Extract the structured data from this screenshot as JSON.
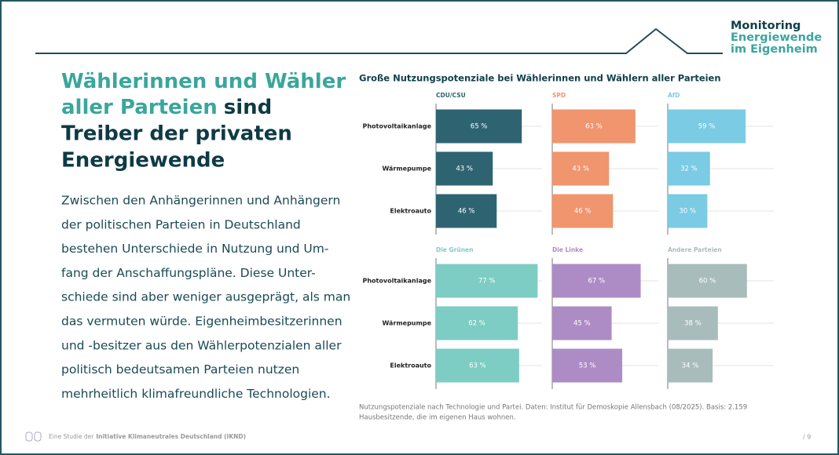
{
  "logo": [
    "Monitoring",
    "Energiewende",
    "im Eigenheim"
  ],
  "heading": [
    [
      "Wählerinnen und Wähler"
    ],
    [
      "aller Parteien",
      "sind"
    ],
    [
      "Treiber der privaten"
    ],
    [
      "Energiewende"
    ]
  ],
  "body": [
    "Zwischen den Anhängerinnen und Anhängern",
    "der politischen Parteien in Deutschland",
    "bestehen Unterschiede in Nutzung und Um-",
    "fang der Anschaffungspläne. Diese Unter-",
    "schiede sind aber weniger ausgeprägt, als man",
    "das vermuten würde. Eigenheimbesitzerinnen",
    "und -besitzer aus den Wählerpotenzialen aller",
    "politisch bedeutsamen Parteien nutzen",
    "mehrheitlich klimafreundliche Technologien."
  ],
  "chart_title": "Große Nutzungspotenziale bei Wählerinnen und Wählern aller Parteien",
  "chart_data": [
    {
      "type": "bar",
      "title": "CDU/CSU",
      "categories": [
        "Photovoltaikanlage",
        "Wärmepumpe",
        "Elektroauto"
      ],
      "values": [
        65,
        43,
        46
      ],
      "value_labels": [
        "65 %",
        "43 %",
        "46 %"
      ],
      "color": "#2e6472"
    },
    {
      "type": "bar",
      "title": "SPD",
      "values": [
        63,
        43,
        46
      ],
      "value_labels": [
        "63 %",
        "43 %",
        "46 %"
      ],
      "color": "#f0956e"
    },
    {
      "type": "bar",
      "title": "AfD",
      "values": [
        59,
        32,
        30
      ],
      "value_labels": [
        "59 %",
        "32 %",
        "30 %"
      ],
      "color": "#7acbe3"
    },
    {
      "type": "bar",
      "title": "Die Grünen",
      "categories": [
        "Photovoltaikanlage",
        "Wärmepumpe",
        "Elektroauto"
      ],
      "values": [
        77,
        62,
        63
      ],
      "value_labels": [
        "77 %",
        "62 %",
        "63 %"
      ],
      "color": "#7dcdc4"
    },
    {
      "type": "bar",
      "title": "Die Linke",
      "values": [
        67,
        45,
        53
      ],
      "value_labels": [
        "67 %",
        "45 %",
        "53 %"
      ],
      "color": "#ad8cc6"
    },
    {
      "type": "bar",
      "title": "Andere Parteien",
      "values": [
        60,
        38,
        34
      ],
      "value_labels": [
        "60 %",
        "38 %",
        "34 %"
      ],
      "color": "#a9bcbc"
    }
  ],
  "note": [
    "Nutzungspotenziale nach Technologie und Partei. Daten: Institut für Demoskopie Allensbach (08/2025). Basis: 2.159",
    "Hausbesitzende, die im eigenen Haus wohnen."
  ],
  "footer": {
    "prefix": "Eine Studie der",
    "org": "Initiative Klimaneutrales Deutschland (IKND)",
    "page": "/ 9"
  }
}
